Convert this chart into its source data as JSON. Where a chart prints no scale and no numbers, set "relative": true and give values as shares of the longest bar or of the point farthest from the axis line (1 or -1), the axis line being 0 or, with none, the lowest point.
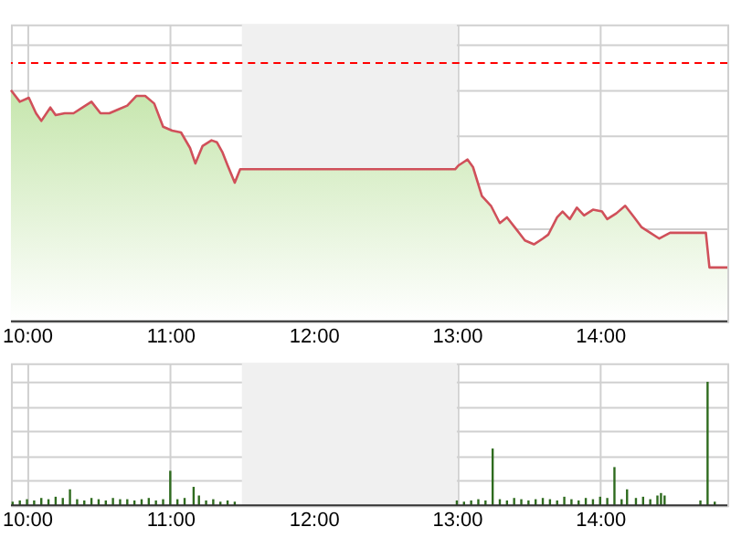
{
  "chart_data": [
    {
      "type": "area",
      "relative": true,
      "x": [
        9.888,
        9.95,
        10.013,
        10.063,
        10.1,
        10.163,
        10.2,
        10.263,
        10.325,
        10.388,
        10.45,
        10.513,
        10.575,
        10.638,
        10.7,
        10.763,
        10.825,
        10.888,
        10.95,
        11.013,
        11.075,
        11.138,
        11.175,
        11.225,
        11.288,
        11.325,
        11.363,
        11.4,
        11.45,
        11.488,
        11.575,
        12.988,
        13.013,
        13.075,
        13.113,
        13.175,
        13.238,
        13.3,
        13.35,
        13.413,
        13.475,
        13.538,
        13.6,
        13.638,
        13.7,
        13.738,
        13.788,
        13.838,
        13.888,
        13.95,
        14.013,
        14.05,
        14.113,
        14.175,
        14.238,
        14.288,
        14.35,
        14.413,
        14.488,
        14.575,
        14.738,
        14.763,
        14.888
      ],
      "series": [
        {
          "color": "#d0505a",
          "values": [
            1.0,
            0.95,
            0.967,
            0.9,
            0.867,
            0.925,
            0.892,
            0.9,
            0.9,
            0.925,
            0.95,
            0.9,
            0.9,
            0.917,
            0.933,
            0.975,
            0.975,
            0.942,
            0.842,
            0.825,
            0.817,
            0.75,
            0.683,
            0.758,
            0.783,
            0.775,
            0.733,
            0.675,
            0.6,
            0.658,
            0.658,
            0.658,
            0.675,
            0.7,
            0.667,
            0.542,
            0.5,
            0.425,
            0.45,
            0.4,
            0.35,
            0.333,
            0.358,
            0.375,
            0.45,
            0.475,
            0.442,
            0.492,
            0.458,
            0.483,
            0.475,
            0.442,
            0.467,
            0.5,
            0.45,
            0.408,
            0.383,
            0.358,
            0.383,
            0.383,
            0.383,
            0.233,
            0.233
          ]
        }
      ],
      "xlim": [
        9.888,
        14.888
      ],
      "xticks": [
        {
          "value": 10,
          "label": "10:00"
        },
        {
          "value": 11,
          "label": "11:00"
        },
        {
          "value": 12,
          "label": "12:00"
        },
        {
          "value": 13,
          "label": "13:00"
        },
        {
          "value": 14,
          "label": "14:00"
        }
      ],
      "ref_lines": [
        {
          "axis": "y",
          "value": 1.117,
          "color": "#ff0000",
          "line_style": "dashed"
        }
      ],
      "bands": [
        {
          "axis": "x",
          "from": 11.5,
          "to": 13.0,
          "color": "#f0f0f0"
        }
      ],
      "grid": true,
      "tick_labels": "x"
    },
    {
      "type": "bar",
      "relative": true,
      "x": [
        9.9,
        9.95,
        10.0,
        10.05,
        10.1,
        10.15,
        10.2,
        10.25,
        10.3,
        10.35,
        10.4,
        10.45,
        10.5,
        10.55,
        10.6,
        10.65,
        10.7,
        10.75,
        10.8,
        10.85,
        10.9,
        10.95,
        11.0,
        11.05,
        11.1,
        11.163,
        11.2,
        11.25,
        11.3,
        11.35,
        11.4,
        11.45,
        13.0,
        13.05,
        13.1,
        13.15,
        13.2,
        13.25,
        13.3,
        13.35,
        13.4,
        13.45,
        13.5,
        13.55,
        13.6,
        13.65,
        13.7,
        13.75,
        13.8,
        13.85,
        13.9,
        13.95,
        14.0,
        14.05,
        14.1,
        14.15,
        14.188,
        14.25,
        14.3,
        14.35,
        14.4,
        14.425,
        14.45,
        14.7,
        14.75,
        14.8
      ],
      "series": [
        {
          "color": "#2e6b1e",
          "values": [
            0.03,
            0.04,
            0.05,
            0.04,
            0.06,
            0.05,
            0.07,
            0.06,
            0.13,
            0.05,
            0.04,
            0.06,
            0.05,
            0.04,
            0.06,
            0.05,
            0.05,
            0.04,
            0.05,
            0.06,
            0.04,
            0.05,
            0.28,
            0.05,
            0.06,
            0.15,
            0.08,
            0.04,
            0.05,
            0.03,
            0.04,
            0.03,
            0.04,
            0.03,
            0.04,
            0.05,
            0.04,
            0.46,
            0.05,
            0.04,
            0.06,
            0.05,
            0.04,
            0.05,
            0.06,
            0.05,
            0.04,
            0.07,
            0.05,
            0.04,
            0.06,
            0.05,
            0.07,
            0.06,
            0.31,
            0.05,
            0.13,
            0.06,
            0.07,
            0.05,
            0.08,
            0.1,
            0.08,
            0.04,
            1.0,
            0.03
          ]
        }
      ],
      "xlim": [
        9.888,
        14.888
      ],
      "xticks": [
        {
          "value": 10,
          "label": "10:00"
        },
        {
          "value": 11,
          "label": "11:00"
        },
        {
          "value": 12,
          "label": "12:00"
        },
        {
          "value": 13,
          "label": "13:00"
        },
        {
          "value": 14,
          "label": "14:00"
        }
      ],
      "bands": [
        {
          "axis": "x",
          "from": 11.5,
          "to": 13.0,
          "color": "#f0f0f0"
        }
      ],
      "grid": true,
      "tick_labels": "x"
    }
  ]
}
